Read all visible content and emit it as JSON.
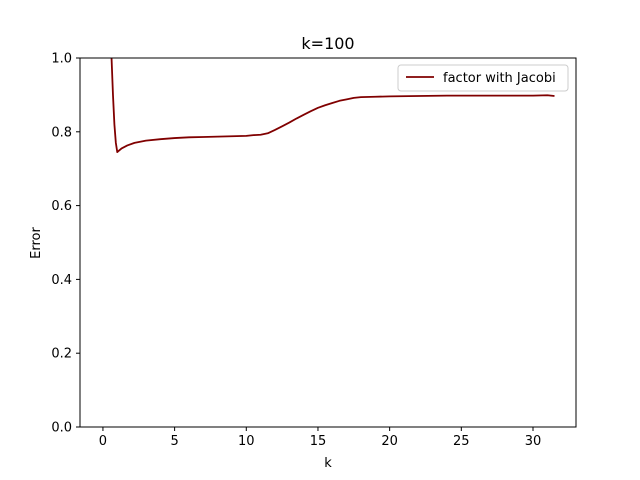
{
  "chart_data": {
    "type": "line",
    "title": "k=100",
    "xlabel": "k",
    "ylabel": "Error",
    "xlim": [
      -1.6,
      33.0
    ],
    "ylim": [
      0.0,
      1.0
    ],
    "xticks": [
      0,
      5,
      10,
      15,
      20,
      25,
      30
    ],
    "yticks": [
      0.0,
      0.2,
      0.4,
      0.6,
      0.8,
      1.0
    ],
    "xtick_labels": [
      "0",
      "5",
      "10",
      "15",
      "20",
      "25",
      "30"
    ],
    "ytick_labels": [
      "0.0",
      "0.2",
      "0.4",
      "0.6",
      "0.8",
      "1.0"
    ],
    "grid": false,
    "legend_position": "upper right",
    "series": [
      {
        "name": "factor with Jacobi",
        "color": "#800000",
        "x": [
          0.5,
          0.6,
          0.7,
          0.8,
          0.9,
          1.0,
          1.3,
          1.7,
          2.2,
          3.0,
          4.0,
          5.0,
          6.0,
          7.0,
          8.0,
          9.0,
          10.0,
          10.5,
          11.0,
          11.5,
          12.0,
          12.5,
          13.0,
          13.5,
          14.0,
          14.5,
          15.0,
          15.5,
          16.0,
          16.5,
          17.0,
          17.5,
          18.0,
          19.0,
          20.0,
          22.0,
          24.0,
          26.0,
          28.0,
          30.0,
          31.0,
          31.5
        ],
        "y": [
          1.5,
          1.0,
          0.9,
          0.82,
          0.77,
          0.745,
          0.755,
          0.763,
          0.77,
          0.776,
          0.78,
          0.783,
          0.785,
          0.786,
          0.787,
          0.788,
          0.789,
          0.791,
          0.792,
          0.796,
          0.805,
          0.815,
          0.825,
          0.836,
          0.846,
          0.856,
          0.865,
          0.872,
          0.878,
          0.884,
          0.888,
          0.892,
          0.894,
          0.895,
          0.896,
          0.897,
          0.898,
          0.898,
          0.898,
          0.898,
          0.899,
          0.897
        ]
      }
    ]
  }
}
